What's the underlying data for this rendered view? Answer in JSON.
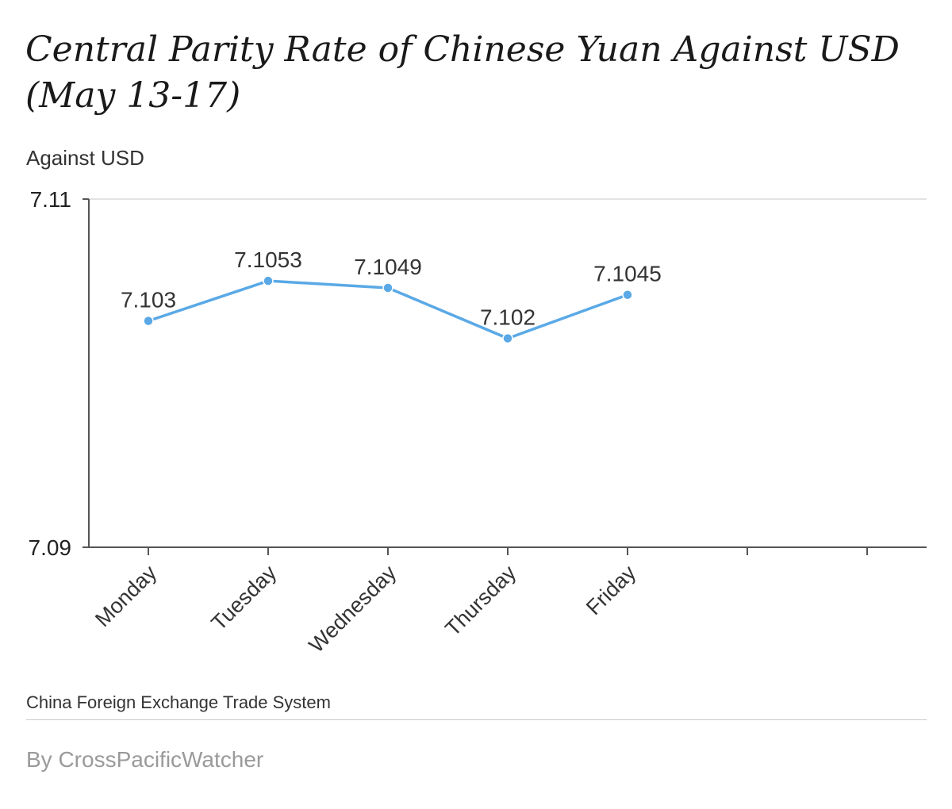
{
  "header": {
    "title": "Central Parity Rate of Chinese Yuan Against USD (May 13-17)"
  },
  "footer": {
    "source": "China Foreign Exchange Trade System",
    "credit": "By CrossPacificWatcher"
  },
  "colors": {
    "series": "#5aa9e6",
    "axis": "#555555",
    "grid": "#d9d9d9"
  },
  "chart_data": {
    "type": "line",
    "title": "Central Parity Rate of Chinese Yuan Against USD (May 13-17)",
    "ylabel": "Against USD",
    "xlabel": "",
    "categories": [
      "Monday",
      "Tuesday",
      "Wednesday",
      "Thursday",
      "Friday"
    ],
    "values": [
      7.103,
      7.1053,
      7.1049,
      7.102,
      7.1045
    ],
    "data_labels": [
      "7.103",
      "7.1053",
      "7.1049",
      "7.102",
      "7.1045"
    ],
    "ylim": [
      7.09,
      7.11
    ],
    "yticks": [
      "7.09",
      "7.11"
    ],
    "x_slots": 7,
    "grid": true
  }
}
